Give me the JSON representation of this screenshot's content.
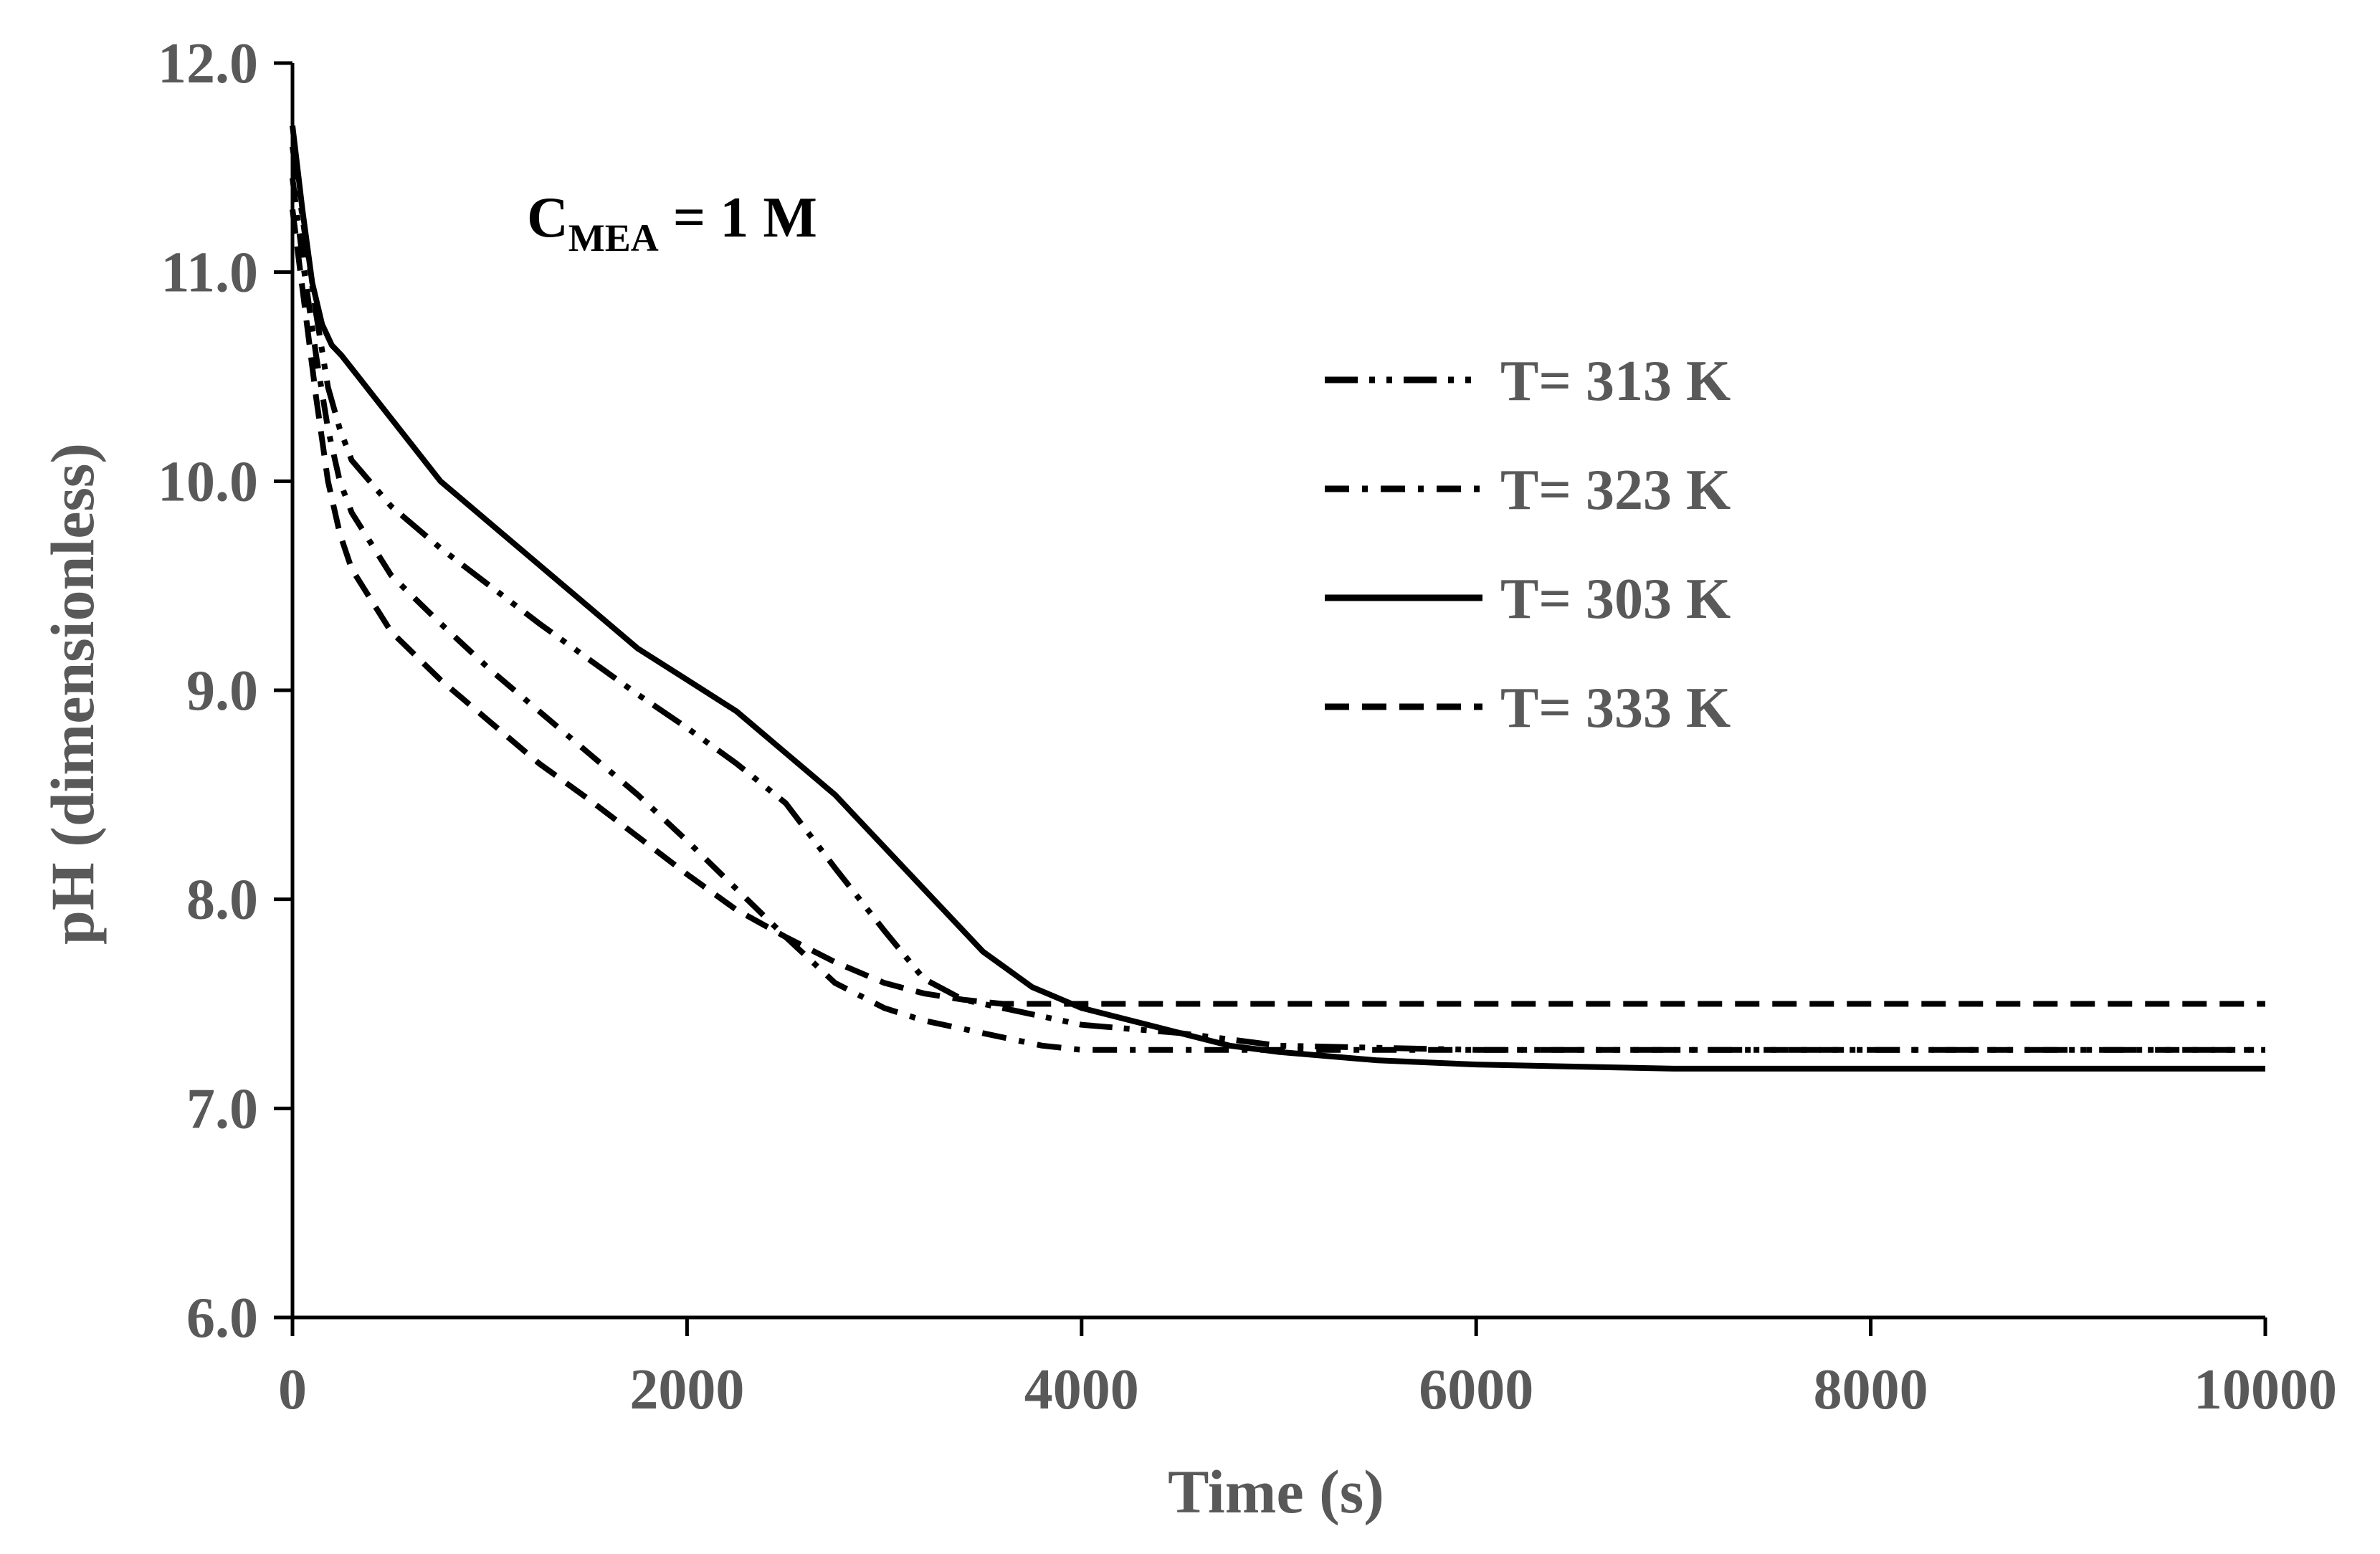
{
  "chart_data": {
    "type": "line",
    "title": "",
    "annotation": {
      "main": "C",
      "subscript": "MEA",
      "rest": " = 1 M"
    },
    "xlabel": "Time (s)",
    "ylabel": "pH (dimensionless)",
    "xlim": [
      0,
      10000
    ],
    "ylim": [
      6.0,
      12.0
    ],
    "x_ticks": [
      "0",
      "2000",
      "4000",
      "6000",
      "8000",
      "10000"
    ],
    "y_ticks": [
      "6.0",
      "7.0",
      "8.0",
      "9.0",
      "10.0",
      "11.0",
      "12.0"
    ],
    "grid": false,
    "legend_position": "upper-right",
    "series": [
      {
        "name": "T= 313 K",
        "style": "long-dash-dot-dot",
        "x": [
          0,
          60,
          120,
          180,
          240,
          300,
          500,
          750,
          1000,
          1250,
          1500,
          1750,
          2000,
          2250,
          2500,
          2750,
          3000,
          3200,
          3400,
          3600,
          4000,
          4500,
          5000,
          6000,
          7000,
          8000,
          9000,
          10000
        ],
        "y": [
          11.6,
          11.2,
          10.8,
          10.45,
          10.25,
          10.1,
          9.88,
          9.68,
          9.5,
          9.32,
          9.15,
          8.98,
          8.82,
          8.65,
          8.46,
          8.15,
          7.85,
          7.62,
          7.52,
          7.48,
          7.4,
          7.36,
          7.3,
          7.28,
          7.28,
          7.28,
          7.28,
          7.28
        ]
      },
      {
        "name": "T= 323 K",
        "style": "dash-dot",
        "x": [
          0,
          60,
          120,
          180,
          240,
          300,
          500,
          750,
          1000,
          1250,
          1500,
          1750,
          2000,
          2250,
          2500,
          2750,
          3000,
          3200,
          3400,
          3600,
          3800,
          4000,
          5000,
          6000,
          7000,
          8000,
          9000,
          10000
        ],
        "y": [
          11.45,
          11.0,
          10.6,
          10.25,
          10.0,
          9.85,
          9.55,
          9.32,
          9.1,
          8.9,
          8.7,
          8.5,
          8.28,
          8.05,
          7.82,
          7.6,
          7.48,
          7.42,
          7.38,
          7.34,
          7.3,
          7.28,
          7.28,
          7.28,
          7.28,
          7.28,
          7.28,
          7.28
        ]
      },
      {
        "name": "T= 303 K",
        "style": "solid",
        "x": [
          0,
          50,
          100,
          150,
          200,
          250,
          500,
          750,
          1000,
          1250,
          1500,
          1750,
          2000,
          2250,
          2500,
          2750,
          3000,
          3250,
          3500,
          3750,
          4000,
          4250,
          4500,
          4750,
          5000,
          5500,
          6000,
          7000,
          8000,
          9000,
          10000
        ],
        "y": [
          11.7,
          11.3,
          10.95,
          10.75,
          10.65,
          10.6,
          10.3,
          10.0,
          9.8,
          9.6,
          9.4,
          9.2,
          9.05,
          8.9,
          8.7,
          8.5,
          8.25,
          8.0,
          7.75,
          7.58,
          7.48,
          7.42,
          7.36,
          7.3,
          7.27,
          7.23,
          7.21,
          7.19,
          7.19,
          7.19,
          7.19
        ]
      },
      {
        "name": "T= 333 K",
        "style": "dash",
        "x": [
          0,
          60,
          120,
          180,
          240,
          300,
          500,
          750,
          1000,
          1250,
          1500,
          1750,
          2000,
          2250,
          2500,
          2750,
          3000,
          3200,
          3400,
          3600,
          4000,
          5000,
          6000,
          7000,
          8000,
          9000,
          10000
        ],
        "y": [
          11.3,
          10.85,
          10.4,
          10.0,
          9.75,
          9.58,
          9.28,
          9.05,
          8.85,
          8.65,
          8.48,
          8.3,
          8.12,
          7.95,
          7.82,
          7.7,
          7.6,
          7.55,
          7.52,
          7.5,
          7.5,
          7.5,
          7.5,
          7.5,
          7.5,
          7.5,
          7.5
        ]
      }
    ]
  }
}
